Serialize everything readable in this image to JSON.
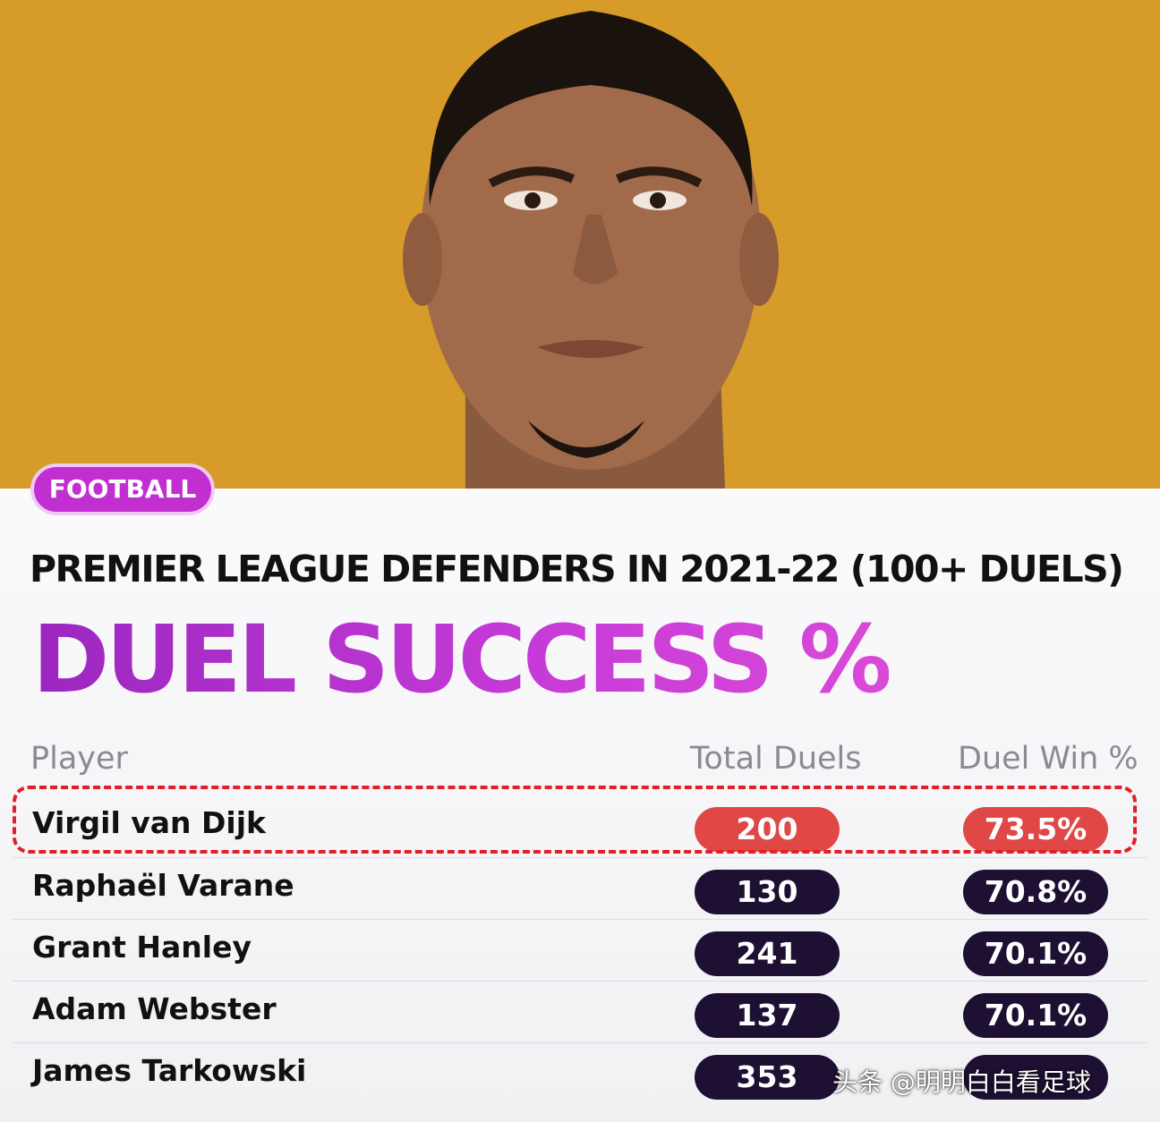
{
  "badge": "FOOTBALL",
  "subtitle": "PREMIER LEAGUE DEFENDERS IN 2021-22 (100+ DUELS)",
  "title": "DUEL SUCCESS %",
  "colors": {
    "background_top": "#d69b28",
    "accent_purple": "#b62ccc",
    "pill_dark": "#1d1033",
    "pill_highlight": "#e04848",
    "highlight_border": "#e21e26"
  },
  "chart_data": {
    "type": "table",
    "columns": [
      "Player",
      "Total Duels",
      "Duel Win %"
    ],
    "rows": [
      {
        "player": "Virgil van Dijk",
        "total_duels": "200",
        "duel_win": "73.5%",
        "highlighted": true
      },
      {
        "player": "Raphaël Varane",
        "total_duels": "130",
        "duel_win": "70.8%",
        "highlighted": false
      },
      {
        "player": "Grant Hanley",
        "total_duels": "241",
        "duel_win": "70.1%",
        "highlighted": false
      },
      {
        "player": "Adam Webster",
        "total_duels": "137",
        "duel_win": "70.1%",
        "highlighted": false
      },
      {
        "player": "James Tarkowski",
        "total_duels": "353",
        "duel_win": "",
        "highlighted": false
      }
    ]
  },
  "watermark": "头条 @明明白白看足球"
}
